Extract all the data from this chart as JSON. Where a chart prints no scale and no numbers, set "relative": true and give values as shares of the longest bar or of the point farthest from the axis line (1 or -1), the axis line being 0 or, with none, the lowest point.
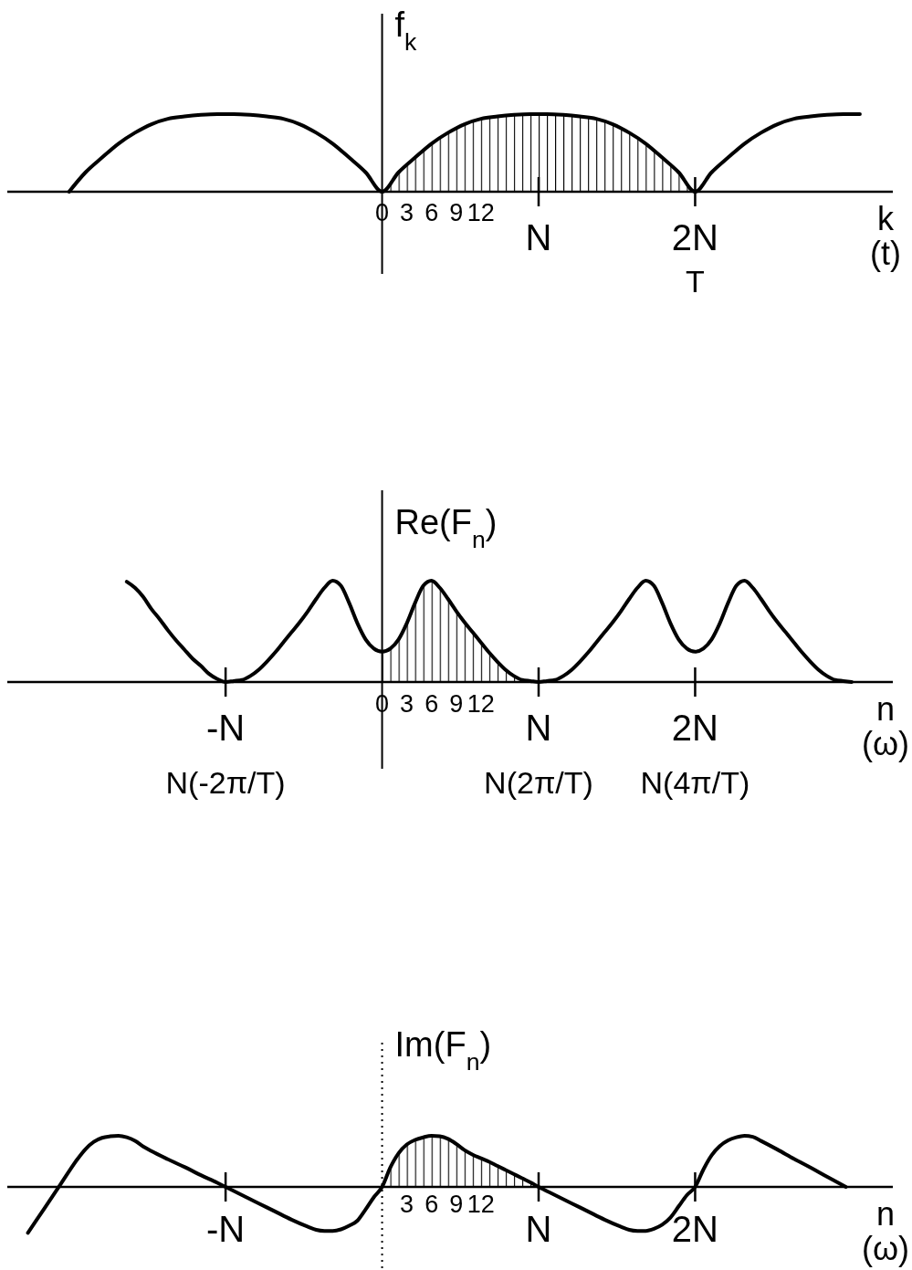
{
  "chart_data": [
    {
      "type": "line",
      "relative": true,
      "ylabel": "f$_{k}$",
      "xlabel": "k\n(t)",
      "xlim": [
        -45.5,
        62
      ],
      "xticks": [
        0,
        3,
        6,
        9,
        12
      ],
      "annotations": [
        {
          "text": "N",
          "x": 19,
          "y": 0
        },
        {
          "text": "2N",
          "x": 38,
          "y": 0
        },
        {
          "text": "T",
          "x": 38,
          "y": 0
        }
      ],
      "ref_lines": [
        {
          "axis": "x",
          "value": 0
        }
      ],
      "series": [
        {
          "type": "line",
          "color": "#000000",
          "x": [
            -38,
            -36,
            -34,
            -32,
            -30,
            -28,
            -26,
            -24,
            -22,
            -20,
            -18,
            -16,
            -14,
            -12,
            -10,
            -8,
            -6,
            -4,
            -2,
            0,
            2,
            4,
            6,
            8,
            10,
            12,
            14,
            16,
            18,
            20,
            22,
            24,
            26,
            28,
            30,
            32,
            34,
            36,
            38,
            40,
            42,
            44,
            46,
            48,
            50,
            52,
            54,
            56,
            58
          ],
          "values": [
            0,
            0.25,
            0.44,
            0.62,
            0.76,
            0.87,
            0.94,
            0.97,
            0.99,
            1.0,
            1.0,
            0.99,
            0.97,
            0.94,
            0.87,
            0.76,
            0.62,
            0.44,
            0.25,
            0,
            0.25,
            0.44,
            0.62,
            0.76,
            0.87,
            0.94,
            0.97,
            0.99,
            1.0,
            1.0,
            0.99,
            0.97,
            0.94,
            0.87,
            0.76,
            0.62,
            0.44,
            0.25,
            0,
            0.25,
            0.44,
            0.62,
            0.76,
            0.87,
            0.94,
            0.97,
            0.99,
            1.0,
            1.0
          ]
        },
        {
          "type": "area",
          "color": "#000000",
          "x": [
            0,
            2,
            4,
            6,
            8,
            10,
            12,
            14,
            16,
            18,
            20,
            22,
            24,
            26,
            28,
            30,
            32,
            34,
            36,
            38
          ],
          "values": [
            0,
            0.25,
            0.44,
            0.62,
            0.76,
            0.87,
            0.94,
            0.97,
            0.99,
            1.0,
            1.0,
            0.99,
            0.97,
            0.94,
            0.87,
            0.76,
            0.62,
            0.44,
            0.25,
            0
          ]
        }
      ]
    },
    {
      "type": "line",
      "relative": true,
      "ylabel": "Re(F$_{n}$)",
      "xlabel": "n\n(ω)",
      "xlim": [
        -45.5,
        62
      ],
      "xticks": [
        0,
        3,
        6,
        9,
        12
      ],
      "annotations": [
        {
          "text": "-N",
          "x": -19,
          "y": 0
        },
        {
          "text": "N",
          "x": 19,
          "y": 0
        },
        {
          "text": "N(-2π/T)",
          "x": -19,
          "y": 0
        },
        {
          "text": "N(2π/T)",
          "x": 19,
          "y": 0
        },
        {
          "text": "2N",
          "x": 38
        },
        "N(4π/T)"
      ],
      "ref_lines": [
        {
          "axis": "x",
          "value": 0
        }
      ],
      "series": [
        {
          "type": "line",
          "color": "#000000",
          "x": [
            -31,
            -30,
            -29,
            -28,
            -27,
            -26,
            -25,
            -24,
            -23,
            -22,
            -21,
            -20,
            -19,
            -18,
            -17,
            -16,
            -15,
            -14,
            -13,
            -12,
            -11,
            -10,
            -9,
            -8,
            -7,
            -6,
            -5,
            -4,
            -3,
            -2,
            -1,
            0,
            1,
            2,
            3,
            4,
            5,
            6,
            7,
            8,
            9,
            10,
            11,
            12,
            13,
            14,
            15,
            16,
            17,
            18,
            19,
            20,
            21,
            22,
            23,
            24,
            25,
            26,
            27,
            28,
            29,
            30,
            31,
            32,
            33,
            34,
            35,
            36,
            37,
            38,
            39,
            40,
            41,
            42,
            43,
            44,
            45,
            46,
            47,
            48,
            49,
            50,
            51,
            52,
            53,
            54,
            55,
            56,
            57
          ],
          "values": [
            0.99,
            0.93,
            0.84,
            0.72,
            0.62,
            0.51,
            0.41,
            0.32,
            0.23,
            0.16,
            0.08,
            0.03,
            0,
            0.01,
            0.02,
            0.06,
            0.12,
            0.2,
            0.29,
            0.39,
            0.49,
            0.59,
            0.7,
            0.82,
            0.93,
            1.0,
            0.95,
            0.78,
            0.58,
            0.42,
            0.33,
            0.3,
            0.33,
            0.42,
            0.58,
            0.78,
            0.95,
            1.0,
            0.93,
            0.82,
            0.7,
            0.59,
            0.49,
            0.39,
            0.29,
            0.2,
            0.12,
            0.06,
            0.02,
            0.01,
            0,
            0.01,
            0.02,
            0.06,
            0.12,
            0.2,
            0.29,
            0.39,
            0.49,
            0.59,
            0.7,
            0.82,
            0.93,
            1.0,
            0.95,
            0.78,
            0.58,
            0.42,
            0.33,
            0.3,
            0.33,
            0.42,
            0.58,
            0.78,
            0.95,
            1.0,
            0.93,
            0.82,
            0.7,
            0.59,
            0.49,
            0.39,
            0.29,
            0.2,
            0.12,
            0.06,
            0.02,
            0.01,
            0
          ]
        },
        {
          "type": "area",
          "color": "#000000",
          "x": [
            0,
            1,
            2,
            3,
            4,
            5,
            6,
            7,
            8,
            9,
            10,
            11,
            12,
            13,
            14,
            15,
            16,
            17,
            18,
            19
          ],
          "values": [
            0.3,
            0.33,
            0.42,
            0.58,
            0.78,
            0.95,
            1.0,
            0.93,
            0.82,
            0.7,
            0.59,
            0.49,
            0.39,
            0.29,
            0.2,
            0.12,
            0.06,
            0.02,
            0.01,
            0
          ]
        }
      ]
    },
    {
      "type": "line",
      "relative": true,
      "ylabel": "Im(F$_{n}$)",
      "xlabel": "n\n(ω)",
      "xlim": [
        -45.5,
        62
      ],
      "xticks": [
        3,
        6,
        9,
        12
      ],
      "annotations": [
        {
          "text": "-N",
          "x": -19,
          "y": 0
        },
        {
          "text": "N",
          "x": 19,
          "y": 0
        },
        {
          "text": "2N",
          "x": 38,
          "y": 0
        }
      ],
      "ref_lines": [
        {
          "axis": "x",
          "value": 0,
          "line_style": "dotted"
        }
      ],
      "series": [
        {
          "type": "line",
          "color": "#000000",
          "x": [
            -43,
            -41,
            -39,
            -37,
            -36,
            -35,
            -34,
            -33,
            -32,
            -31,
            -30,
            -29,
            -28,
            -26,
            -24,
            -22,
            -20,
            -19,
            -17,
            -15,
            -13,
            -11,
            -9,
            -8,
            -7,
            -6,
            -5,
            -4,
            -3,
            -2,
            -1,
            0,
            1,
            2,
            3,
            4,
            5,
            6,
            7,
            8,
            9,
            10,
            11,
            12,
            13,
            14,
            15,
            16,
            17,
            18,
            19,
            21,
            23,
            25,
            27,
            29,
            30,
            31,
            32,
            33,
            34,
            35,
            36,
            37,
            38,
            39,
            40,
            41,
            42,
            43,
            44,
            45,
            46,
            48,
            50,
            52,
            54,
            56.3
          ],
          "values": [
            -0.9,
            -0.42,
            0.06,
            0.54,
            0.74,
            0.88,
            0.96,
            0.99,
            1.0,
            0.97,
            0.9,
            0.79,
            0.7,
            0.54,
            0.39,
            0.23,
            0.08,
            0,
            -0.16,
            -0.32,
            -0.48,
            -0.64,
            -0.78,
            -0.84,
            -0.86,
            -0.86,
            -0.83,
            -0.76,
            -0.66,
            -0.44,
            -0.2,
            0,
            0.38,
            0.66,
            0.83,
            0.92,
            0.97,
            1.0,
            0.99,
            0.94,
            0.84,
            0.72,
            0.63,
            0.56,
            0.49,
            0.41,
            0.33,
            0.25,
            0.17,
            0.09,
            0,
            -0.16,
            -0.32,
            -0.48,
            -0.64,
            -0.78,
            -0.84,
            -0.86,
            -0.86,
            -0.82,
            -0.74,
            -0.6,
            -0.38,
            -0.16,
            0,
            0.34,
            0.62,
            0.8,
            0.91,
            0.97,
            1.0,
            0.98,
            0.9,
            0.73,
            0.55,
            0.38,
            0.2,
            0
          ]
        },
        {
          "type": "area",
          "color": "#000000",
          "x": [
            0,
            1,
            2,
            3,
            4,
            5,
            6,
            7,
            8,
            9,
            10,
            11,
            12,
            13,
            14,
            15,
            16,
            17,
            18,
            19
          ],
          "values": [
            0,
            0.38,
            0.66,
            0.83,
            0.92,
            0.97,
            1.0,
            0.99,
            0.94,
            0.84,
            0.72,
            0.63,
            0.56,
            0.49,
            0.41,
            0.33,
            0.25,
            0.17,
            0.09,
            0
          ]
        }
      ]
    }
  ]
}
